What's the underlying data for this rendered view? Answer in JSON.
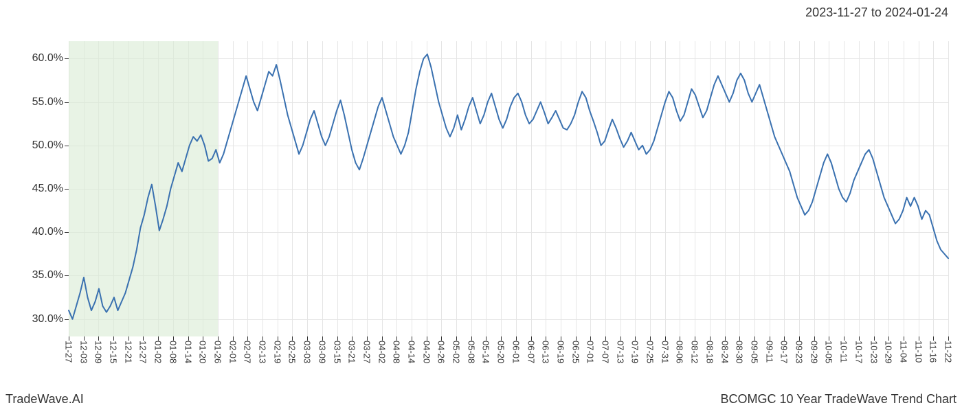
{
  "header": {
    "date_range": "2023-11-27 to 2024-01-24"
  },
  "footer": {
    "left": "TradeWave.AI",
    "right": "BCOMGC 10 Year TradeWave Trend Chart"
  },
  "chart": {
    "type": "line",
    "background_color": "#ffffff",
    "grid_color": "#e5e5e5",
    "axis_color": "#333333",
    "line_color": "#3a71b0",
    "line_width": 2,
    "highlight_band": {
      "color": "#d9ebd3",
      "opacity": 0.6,
      "x_start": "11-27",
      "x_end": "01-26"
    },
    "ylim": [
      28,
      62
    ],
    "y_axis": {
      "ticks": [
        30,
        35,
        40,
        45,
        50,
        55,
        60
      ],
      "labels": [
        "30.0%",
        "35.0%",
        "40.0%",
        "45.0%",
        "50.0%",
        "55.0%",
        "60.0%"
      ],
      "label_fontsize": 16
    },
    "x_axis": {
      "labels": [
        "11-27",
        "12-03",
        "12-09",
        "12-15",
        "12-21",
        "12-27",
        "01-02",
        "01-08",
        "01-14",
        "01-20",
        "01-26",
        "02-01",
        "02-07",
        "02-13",
        "02-19",
        "02-25",
        "03-03",
        "03-09",
        "03-15",
        "03-21",
        "03-27",
        "04-02",
        "04-08",
        "04-14",
        "04-20",
        "04-26",
        "05-02",
        "05-08",
        "05-14",
        "05-20",
        "06-01",
        "06-07",
        "06-13",
        "06-19",
        "06-25",
        "07-01",
        "07-07",
        "07-13",
        "07-19",
        "07-25",
        "07-31",
        "08-06",
        "08-12",
        "08-18",
        "08-24",
        "08-30",
        "09-05",
        "09-11",
        "09-17",
        "09-23",
        "09-29",
        "10-05",
        "10-11",
        "10-17",
        "10-23",
        "10-29",
        "11-04",
        "11-10",
        "11-16",
        "11-22"
      ],
      "label_fontsize": 13,
      "rotation": 90
    },
    "series": [
      {
        "name": "trend",
        "color": "#3a71b0",
        "data": [
          31.0,
          30.0,
          31.5,
          33.0,
          34.8,
          32.5,
          31.0,
          32.0,
          33.5,
          31.5,
          30.8,
          31.5,
          32.5,
          31.0,
          32.0,
          33.0,
          34.5,
          36.0,
          38.0,
          40.5,
          42.0,
          44.0,
          45.5,
          43.0,
          40.2,
          41.5,
          43.0,
          45.0,
          46.5,
          48.0,
          47.0,
          48.5,
          50.0,
          51.0,
          50.5,
          51.2,
          50.0,
          48.2,
          48.5,
          49.5,
          48.0,
          49.0,
          50.5,
          52.0,
          53.5,
          55.0,
          56.5,
          58.0,
          56.5,
          55.0,
          54.0,
          55.5,
          57.0,
          58.5,
          58.0,
          59.3,
          57.5,
          55.5,
          53.5,
          52.0,
          50.5,
          49.0,
          50.0,
          51.5,
          53.0,
          54.0,
          52.5,
          51.0,
          50.0,
          51.0,
          52.5,
          54.0,
          55.2,
          53.5,
          51.5,
          49.5,
          48.0,
          47.2,
          48.5,
          50.0,
          51.5,
          53.0,
          54.5,
          55.5,
          54.0,
          52.5,
          51.0,
          50.0,
          49.0,
          50.0,
          51.5,
          54.0,
          56.5,
          58.5,
          60.0,
          60.5,
          59.0,
          57.0,
          55.0,
          53.5,
          52.0,
          51.0,
          52.0,
          53.5,
          51.8,
          53.0,
          54.5,
          55.5,
          54.0,
          52.5,
          53.5,
          55.0,
          56.0,
          54.5,
          53.0,
          52.0,
          53.0,
          54.5,
          55.5,
          56.0,
          55.0,
          53.5,
          52.5,
          53.0,
          54.0,
          55.0,
          53.8,
          52.5,
          53.2,
          54.0,
          53.0,
          52.0,
          51.8,
          52.5,
          53.5,
          55.0,
          56.2,
          55.5,
          54.0,
          52.8,
          51.5,
          50.0,
          50.5,
          51.8,
          53.0,
          52.0,
          50.8,
          49.8,
          50.5,
          51.5,
          50.5,
          49.5,
          50.0,
          49.0,
          49.5,
          50.5,
          52.0,
          53.5,
          55.0,
          56.2,
          55.5,
          54.0,
          52.8,
          53.5,
          55.0,
          56.5,
          55.8,
          54.5,
          53.2,
          54.0,
          55.5,
          57.0,
          58.0,
          57.0,
          56.0,
          55.0,
          56.0,
          57.5,
          58.3,
          57.5,
          56.0,
          55.0,
          56.0,
          57.0,
          55.5,
          54.0,
          52.5,
          51.0,
          50.0,
          49.0,
          48.0,
          47.0,
          45.5,
          44.0,
          43.0,
          42.0,
          42.5,
          43.5,
          45.0,
          46.5,
          48.0,
          49.0,
          48.0,
          46.5,
          45.0,
          44.0,
          43.5,
          44.5,
          46.0,
          47.0,
          48.0,
          49.0,
          49.5,
          48.5,
          47.0,
          45.5,
          44.0,
          43.0,
          42.0,
          41.0,
          41.5,
          42.5,
          44.0,
          43.0,
          44.0,
          43.0,
          41.5,
          42.5,
          42.0,
          40.5,
          39.0,
          38.0,
          37.5,
          37.0
        ]
      }
    ]
  }
}
